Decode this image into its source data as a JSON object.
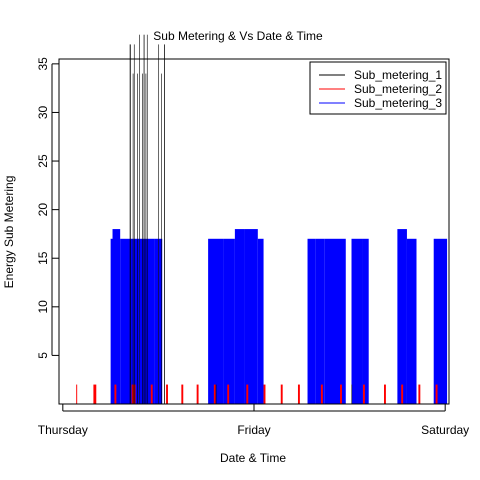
{
  "chart_data": {
    "type": "line",
    "title": "Sub Metering & Vs Date & Time",
    "xlabel": "Date & Time",
    "ylabel": "Energy Sub Metering",
    "x_ticks": [
      "Thursday",
      "Friday",
      "Saturday"
    ],
    "x_tick_days": [
      0,
      1,
      2
    ],
    "xlim_days": [
      -0.02,
      2.02
    ],
    "y_ticks": [
      5,
      10,
      15,
      20,
      25,
      30,
      35
    ],
    "ylim": [
      0,
      35.5
    ],
    "grid": false,
    "legend_position": "top-right",
    "series": [
      {
        "name": "Sub_metering_1",
        "color": "#000000",
        "baseline": 0,
        "spikes": [
          {
            "start": 0.35,
            "end": 0.355,
            "peak": 37
          },
          {
            "start": 0.366,
            "end": 0.368,
            "peak": 34
          },
          {
            "start": 0.372,
            "end": 0.375,
            "peak": 37
          },
          {
            "start": 0.39,
            "end": 0.392,
            "peak": 34
          },
          {
            "start": 0.4,
            "end": 0.403,
            "peak": 38
          },
          {
            "start": 0.415,
            "end": 0.418,
            "peak": 34
          },
          {
            "start": 0.423,
            "end": 0.427,
            "peak": 38
          },
          {
            "start": 0.433,
            "end": 0.435,
            "peak": 34
          },
          {
            "start": 0.44,
            "end": 0.442,
            "peak": 38
          },
          {
            "start": 0.5,
            "end": 0.503,
            "peak": 37
          },
          {
            "start": 0.515,
            "end": 0.518,
            "peak": 34
          },
          {
            "start": 0.53,
            "end": 0.534,
            "peak": 37
          },
          {
            "start": 0.8,
            "end": 0.802,
            "peak": 2
          },
          {
            "start": 1.51,
            "end": 1.512,
            "peak": 2
          }
        ]
      },
      {
        "name": "Sub_metering_2",
        "color": "#ff0000",
        "baseline": 0,
        "spikes": [
          {
            "start": 0.07,
            "end": 0.075,
            "peak": 2
          },
          {
            "start": 0.16,
            "end": 0.175,
            "peak": 2
          },
          {
            "start": 0.27,
            "end": 0.28,
            "peak": 2
          },
          {
            "start": 0.36,
            "end": 0.38,
            "peak": 2
          },
          {
            "start": 0.46,
            "end": 0.47,
            "peak": 2
          },
          {
            "start": 0.54,
            "end": 0.55,
            "peak": 2
          },
          {
            "start": 0.62,
            "end": 0.63,
            "peak": 2
          },
          {
            "start": 0.7,
            "end": 0.71,
            "peak": 2
          },
          {
            "start": 0.79,
            "end": 0.8,
            "peak": 2
          },
          {
            "start": 0.86,
            "end": 0.87,
            "peak": 2
          },
          {
            "start": 0.96,
            "end": 0.97,
            "peak": 2
          },
          {
            "start": 1.05,
            "end": 1.06,
            "peak": 2
          },
          {
            "start": 1.14,
            "end": 1.15,
            "peak": 2
          },
          {
            "start": 1.23,
            "end": 1.24,
            "peak": 2
          },
          {
            "start": 1.35,
            "end": 1.36,
            "peak": 2
          },
          {
            "start": 1.45,
            "end": 1.46,
            "peak": 2
          },
          {
            "start": 1.57,
            "end": 1.58,
            "peak": 2
          },
          {
            "start": 1.68,
            "end": 1.69,
            "peak": 2
          },
          {
            "start": 1.77,
            "end": 1.78,
            "peak": 2
          },
          {
            "start": 1.86,
            "end": 1.87,
            "peak": 2
          },
          {
            "start": 1.95,
            "end": 1.96,
            "peak": 2
          }
        ]
      },
      {
        "name": "Sub_metering_3",
        "color": "#0000ff",
        "baseline": 0,
        "spikes": [
          {
            "start": 0.25,
            "end": 0.28,
            "peak": 17
          },
          {
            "start": 0.26,
            "end": 0.3,
            "peak": 18
          },
          {
            "start": 0.3,
            "end": 0.37,
            "peak": 17
          },
          {
            "start": 0.37,
            "end": 0.4,
            "peak": 17
          },
          {
            "start": 0.4,
            "end": 0.48,
            "peak": 17
          },
          {
            "start": 0.48,
            "end": 0.5,
            "peak": 17
          },
          {
            "start": 0.5,
            "end": 0.52,
            "peak": 17
          },
          {
            "start": 0.76,
            "end": 0.84,
            "peak": 17
          },
          {
            "start": 0.84,
            "end": 0.9,
            "peak": 17
          },
          {
            "start": 0.9,
            "end": 0.95,
            "peak": 18
          },
          {
            "start": 0.95,
            "end": 1.02,
            "peak": 18
          },
          {
            "start": 1.02,
            "end": 1.05,
            "peak": 17
          },
          {
            "start": 1.28,
            "end": 1.32,
            "peak": 17
          },
          {
            "start": 1.32,
            "end": 1.37,
            "peak": 17
          },
          {
            "start": 1.37,
            "end": 1.48,
            "peak": 17
          },
          {
            "start": 1.51,
            "end": 1.57,
            "peak": 17
          },
          {
            "start": 1.57,
            "end": 1.6,
            "peak": 17
          },
          {
            "start": 1.75,
            "end": 1.8,
            "peak": 18
          },
          {
            "start": 1.8,
            "end": 1.85,
            "peak": 17
          },
          {
            "start": 1.94,
            "end": 2.01,
            "peak": 17
          }
        ]
      }
    ]
  },
  "colors": {
    "sub_metering_1": "#000000",
    "sub_metering_2": "#ff0000",
    "sub_metering_3": "#0000ff"
  }
}
